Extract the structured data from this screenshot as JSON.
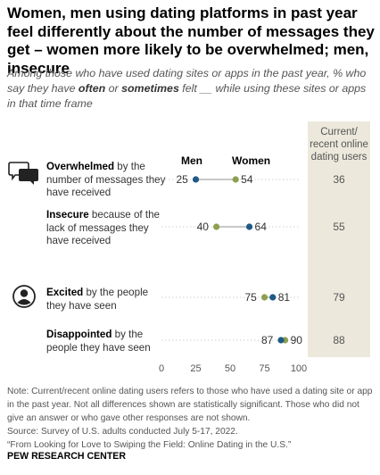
{
  "title": "Women, men using dating platforms in past year feel differently about the number of messages they get – women more likely to be overwhelmed; men, insecure",
  "subtitle": {
    "part1": "Among those who have used dating sites or apps in the past year, % who say they have ",
    "often": "often",
    "or": " or ",
    "sometimes": "sometimes",
    "part2": " felt __ while using these sites or apps in that time frame"
  },
  "legend": {
    "men": "Men",
    "women": "Women"
  },
  "colors": {
    "men": "#1f5a85",
    "women": "#8e9f52",
    "line": "#cfcfcf",
    "shade": "#ece9dc"
  },
  "column_header": "Current/ recent online dating users",
  "rows": [
    {
      "bold": "Overwhelmed",
      "rest": " by the number of messages they have received",
      "icon": "message-bubbles-icon"
    },
    {
      "bold": "Insecure",
      "rest": " because of the lack of messages they have received",
      "icon": ""
    },
    {
      "bold": "Excited",
      "rest": " by the people they have seen",
      "icon": "person-icon"
    },
    {
      "bold": "Disappointed",
      "rest": " by the people they have seen",
      "icon": ""
    }
  ],
  "chart_data": {
    "type": "scatter",
    "categories": [
      "Overwhelmed by the number of messages they have received",
      "Insecure because of the lack of messages they have received",
      "Excited by the people they have seen",
      "Disappointed by the people they have seen"
    ],
    "series": [
      {
        "name": "Men",
        "values": [
          25,
          64,
          81,
          87
        ]
      },
      {
        "name": "Women",
        "values": [
          54,
          40,
          75,
          90
        ]
      }
    ],
    "totals": {
      "name": "Current/recent online dating users",
      "values": [
        36,
        55,
        79,
        88
      ]
    },
    "x_ticks": [
      0,
      25,
      50,
      75,
      100
    ],
    "xlim": [
      0,
      100
    ],
    "grid": false
  },
  "note": "Note: Current/recent online dating users refers to those who have used a dating site or app in the past year. Not all differences shown are statistically significant. Those who did not give an answer or who gave other responses are not shown.",
  "source": "Source: Survey of U.S. adults conducted July 5-17, 2022.",
  "report": "“From Looking for Love to Swiping the Field: Online Dating in the U.S.”",
  "org": "PEW RESEARCH CENTER"
}
